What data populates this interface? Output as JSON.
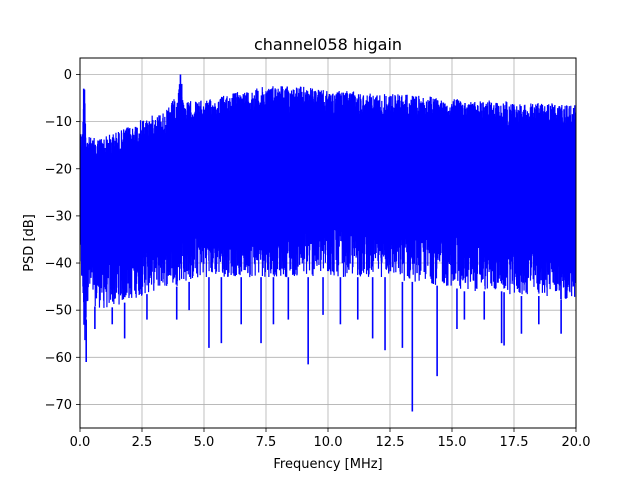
{
  "chart_data": {
    "type": "line",
    "title": "channel058 higain",
    "xlabel": "Frequency [MHz]",
    "ylabel": "PSD [dB]",
    "xlim": [
      0.0,
      20.0
    ],
    "ylim": [
      -75,
      3.5
    ],
    "x_ticks": [
      0.0,
      2.5,
      5.0,
      7.5,
      10.0,
      12.5,
      15.0,
      17.5,
      20.0
    ],
    "x_tick_labels": [
      "0.0",
      "2.5",
      "5.0",
      "7.5",
      "10.0",
      "12.5",
      "15.0",
      "17.5",
      "20.0"
    ],
    "y_ticks": [
      0,
      -10,
      -20,
      -30,
      -40,
      -50,
      -60,
      -70
    ],
    "y_tick_labels": [
      "0",
      "−10",
      "−20",
      "−30",
      "−40",
      "−50",
      "−60",
      "−70"
    ],
    "grid": true,
    "legend": "none",
    "colors": {
      "line": "#0000ff",
      "grid": "#b0b0b0",
      "axes": "#000000"
    },
    "series": [
      {
        "envelope_x": [
          0.0,
          0.1,
          0.15,
          0.2,
          0.25,
          0.3,
          0.5,
          1.0,
          1.5,
          2.0,
          2.5,
          3.0,
          3.5,
          3.8,
          3.9,
          4.0,
          4.05,
          4.1,
          4.2,
          4.5,
          5.0,
          5.5,
          6.0,
          6.5,
          7.0,
          7.5,
          8.0,
          8.5,
          9.0,
          9.5,
          10.0,
          10.5,
          11.0,
          11.5,
          12.0,
          12.5,
          13.0,
          13.5,
          14.0,
          14.5,
          15.0,
          15.5,
          16.0,
          16.5,
          17.0,
          17.5,
          18.0,
          18.5,
          19.0,
          19.5,
          20.0
        ],
        "envelope_upper": [
          -11.5,
          -12,
          -3,
          -3.5,
          -13,
          -13,
          -13.5,
          -13,
          -12,
          -11,
          -9.5,
          -8.5,
          -7.5,
          -5,
          -7,
          -2,
          0,
          -3,
          -6,
          -5.5,
          -5.5,
          -5,
          -4,
          -3.5,
          -3,
          -2.5,
          -2,
          -2.5,
          -2.5,
          -3,
          -3.5,
          -3.5,
          -3.5,
          -4,
          -4,
          -4,
          -4,
          -4.5,
          -4.5,
          -5,
          -5,
          -5.5,
          -5.5,
          -5.5,
          -5.5,
          -6,
          -6,
          -6,
          -6,
          -6.5,
          -6.5
        ],
        "envelope_lower": [
          -40,
          -48,
          -55,
          -60,
          -52,
          -48,
          -49,
          -50,
          -49,
          -48,
          -47,
          -46,
          -45,
          -45,
          -45,
          -44,
          -44,
          -44,
          -44,
          -44,
          -43,
          -43,
          -43,
          -43,
          -43,
          -43,
          -43,
          -43,
          -43,
          -43,
          -43,
          -43,
          -43,
          -43,
          -43,
          -43,
          -44,
          -44,
          -44,
          -45,
          -45,
          -46,
          -46,
          -46,
          -46,
          -47,
          -47,
          -47,
          -47,
          -48,
          -48
        ],
        "dips_x": [
          0.25,
          0.6,
          1.3,
          1.8,
          2.7,
          3.9,
          4.4,
          5.2,
          5.7,
          6.5,
          7.3,
          7.8,
          8.4,
          9.2,
          9.8,
          10.5,
          11.2,
          11.8,
          12.3,
          13.0,
          13.4,
          14.4,
          15.2,
          15.5,
          16.3,
          17.0,
          17.1,
          17.8,
          18.5,
          19.4
        ],
        "dips_y": [
          -61,
          -54,
          -53,
          -56,
          -52,
          -52,
          -50,
          -58,
          -57,
          -53,
          -57,
          -53,
          -52,
          -61.5,
          -51,
          -53,
          -52,
          -56,
          -58.5,
          -58,
          -71.5,
          -64,
          -54,
          -52,
          -52,
          -57,
          -57.5,
          -55,
          -53,
          -55
        ],
        "peaks_x": [
          0.15,
          0.18,
          4.05,
          4.1
        ],
        "peaks_y": [
          -3,
          -3.2,
          0,
          -2
        ]
      }
    ]
  }
}
